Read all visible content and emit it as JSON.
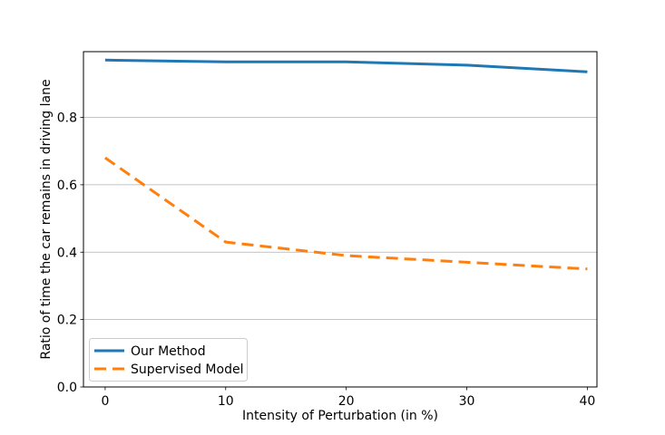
{
  "figure": {
    "background": "#ffffff",
    "plot_background": "#ffffff",
    "spine_color": "#000000"
  },
  "chart_data": {
    "type": "line",
    "title": "",
    "xlabel": "Intensity of Perturbation (in %)",
    "ylabel": "Ratio of time the car remains in driving lane",
    "x": [
      0,
      10,
      20,
      30,
      40
    ],
    "series": [
      {
        "name": "Our Method",
        "values": [
          0.97,
          0.965,
          0.965,
          0.955,
          0.935
        ],
        "color": "#1f77b4",
        "style": "solid",
        "linewidth": 3
      },
      {
        "name": "Supervised Model",
        "values": [
          0.68,
          0.43,
          0.39,
          0.37,
          0.35
        ],
        "color": "#ff7f0e",
        "style": "dashed",
        "linewidth": 3
      }
    ],
    "xlim": [
      -1.8,
      40.8
    ],
    "ylim": [
      0,
      0.995
    ],
    "xticks": [
      0,
      10,
      20,
      30,
      40
    ],
    "xtick_labels": [
      "0",
      "10",
      "20",
      "30",
      "40"
    ],
    "yticks": [
      0.0,
      0.2,
      0.4,
      0.6,
      0.8
    ],
    "ytick_labels": [
      "0.0",
      "0.2",
      "0.4",
      "0.6",
      "0.8"
    ],
    "grid": "horizontal",
    "grid_color": "#b0b0b0",
    "legend": {
      "position": "lower left",
      "border_color": "#cccccc",
      "entries": [
        "Our Method",
        "Supervised Model"
      ]
    }
  }
}
